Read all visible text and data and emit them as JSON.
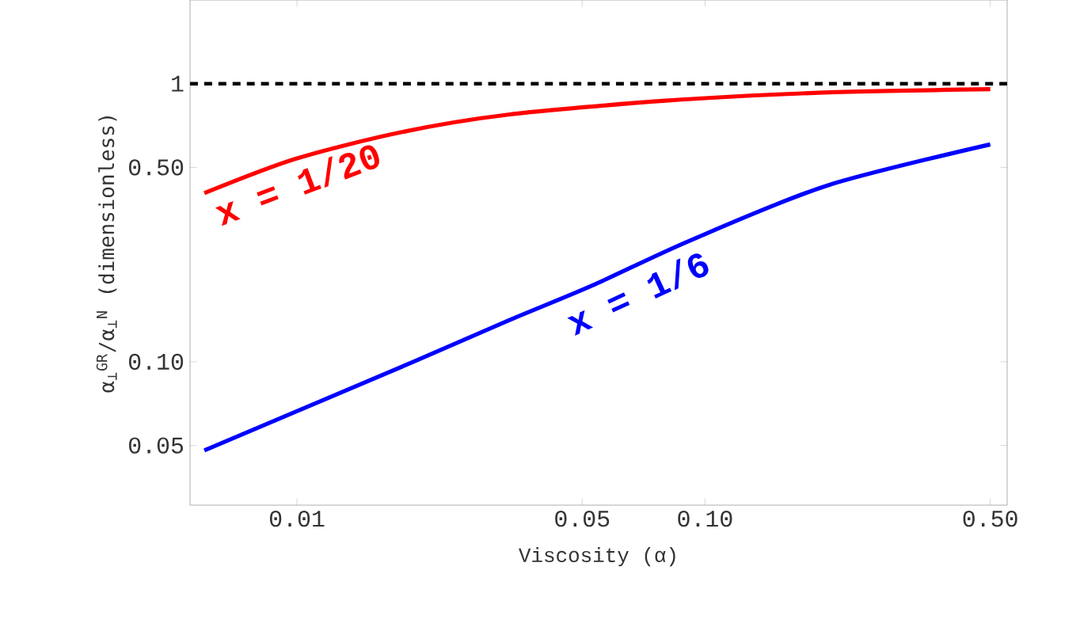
{
  "chart_data": {
    "type": "line",
    "xlabel": "Viscosity (α)",
    "ylabel": "α$_{⊥}$$^{GR}$/α$_{⊥}$$^{N}$ (dimensionless)",
    "log": "xy",
    "xlim": [
      0.00547,
      0.55
    ],
    "ylim": [
      0.0305,
      2.0
    ],
    "xticks": [
      0.01,
      0.05,
      {
        "value": 0.1,
        "label": "0.10"
      },
      {
        "value": 0.5,
        "label": "0.50"
      }
    ],
    "yticks": [
      0.05,
      {
        "value": 0.1,
        "label": "0.10"
      },
      {
        "value": 0.5,
        "label": "0.50"
      },
      1
    ],
    "ref_lines": [
      {
        "axis": "y",
        "value": 1,
        "color": "#000000",
        "line_style": "dashed"
      }
    ],
    "grid": false,
    "series": [
      {
        "name": "x = 1/20",
        "color": "#ff0000",
        "x": [
          0.00593,
          0.00993,
          0.018,
          0.0327,
          0.08,
          0.195,
          0.5
        ],
        "values": [
          0.404,
          0.537,
          0.669,
          0.773,
          0.869,
          0.929,
          0.956
        ]
      },
      {
        "name": "x = 1/6",
        "color": "#0000ff",
        "x": [
          0.00593,
          0.0193,
          0.0327,
          0.0529,
          0.0914,
          0.199,
          0.5
        ],
        "values": [
          0.048,
          0.1,
          0.14,
          0.188,
          0.272,
          0.43,
          0.605
        ]
      }
    ]
  }
}
